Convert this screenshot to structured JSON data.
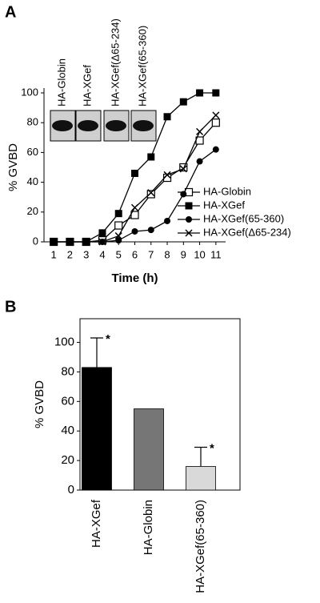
{
  "chart_data": [
    {
      "type": "line",
      "panel": "A",
      "y_label": "% GVBD",
      "x_label": "Time (h)",
      "inset_labels": [
        "HA-Globin",
        "HA-XGef",
        "HA-XGef(Δ65-234)",
        "HA-XGef(65-360)"
      ],
      "x": [
        1,
        2,
        3,
        4,
        5,
        6,
        7,
        8,
        9,
        10,
        11
      ],
      "xlim": [
        0.4,
        11.6
      ],
      "xticks": [
        1,
        2,
        3,
        4,
        5,
        6,
        7,
        8,
        9,
        10,
        11
      ],
      "ylim": [
        0,
        100
      ],
      "yticks": [
        0,
        20,
        40,
        60,
        80,
        100
      ],
      "series": [
        {
          "name": "HA-Globin",
          "color": "#000000",
          "marker": "square-open",
          "values": [
            0,
            0,
            0,
            1,
            11,
            18,
            32,
            43,
            50,
            68,
            80
          ]
        },
        {
          "name": "HA-XGef",
          "color": "#000000",
          "marker": "square",
          "values": [
            0,
            0,
            0,
            6,
            19,
            46,
            57,
            84,
            94,
            100,
            100
          ]
        },
        {
          "name": "HA-XGef(65-360)",
          "color": "#000000",
          "marker": "circle",
          "values": [
            0,
            0,
            0,
            0,
            1,
            7,
            8,
            14,
            32,
            54,
            62
          ]
        },
        {
          "name": "HA-XGef(Δ65-234)",
          "color": "#000000",
          "marker": "x",
          "values": [
            0,
            0,
            0,
            0,
            4,
            23,
            33,
            45,
            49,
            74,
            85
          ]
        }
      ]
    },
    {
      "type": "bar",
      "panel": "B",
      "y_label": "% GVBD",
      "categories": [
        "HA-XGef",
        "HA-Globin",
        "HA-XGef(65-360)"
      ],
      "values": [
        83,
        55,
        16
      ],
      "errors": [
        20,
        null,
        13
      ],
      "colors": [
        "#000000",
        "#767676",
        "#d9d9d9"
      ],
      "ylim": [
        0,
        116
      ],
      "yticks": [
        0,
        20,
        40,
        60,
        80,
        100
      ],
      "annotations": [
        {
          "text": "*",
          "category": "HA-XGef"
        },
        {
          "text": "*",
          "category": "HA-XGef(65-360)"
        }
      ]
    }
  ]
}
